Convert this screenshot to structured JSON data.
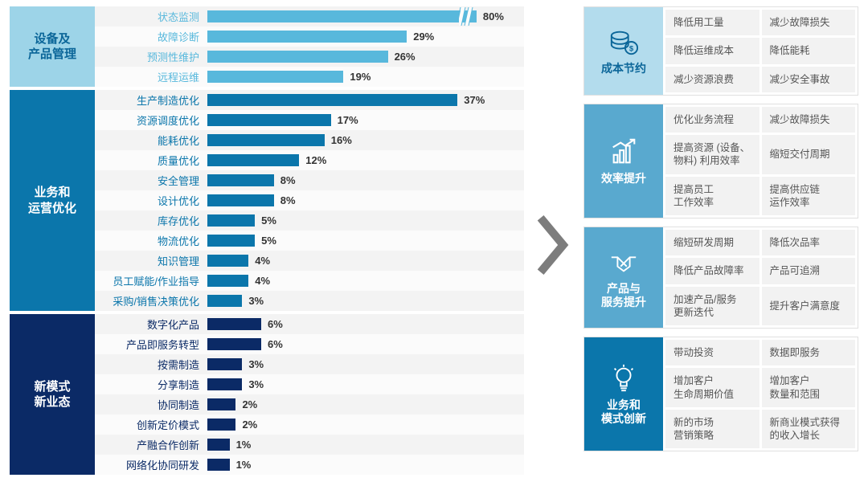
{
  "chart_max_value": 40,
  "bar_scale_percent": 80,
  "bar_offset_percent": 5,
  "groups": [
    {
      "label": "设备及\n产品管理",
      "bg": "#9dd4e8",
      "label_color": "#0b6699",
      "bar_color": "#58b8dc",
      "rows": [
        {
          "name": "状态监测",
          "value": 80,
          "display": "80%",
          "broken": true,
          "draw_value": 40
        },
        {
          "name": "故障诊断",
          "value": 29,
          "display": "29%"
        },
        {
          "name": "预测性维护",
          "value": 26,
          "display": "26%"
        },
        {
          "name": "远程运维",
          "value": 19,
          "display": "19%"
        }
      ]
    },
    {
      "label": "业务和\n运营优化",
      "bg": "#0b76ab",
      "label_color": "#ffffff",
      "bar_color": "#0b76ab",
      "rows": [
        {
          "name": "生产制造优化",
          "value": 37,
          "display": "37%"
        },
        {
          "name": "资源调度优化",
          "value": 17,
          "display": "17%"
        },
        {
          "name": "能耗优化",
          "value": 16,
          "display": "16%"
        },
        {
          "name": "质量优化",
          "value": 12,
          "display": "12%"
        },
        {
          "name": "安全管理",
          "value": 8,
          "display": "8%"
        },
        {
          "name": "设计优化",
          "value": 8,
          "display": "8%"
        },
        {
          "name": "库存优化",
          "value": 5,
          "display": "5%"
        },
        {
          "name": "物流优化",
          "value": 5,
          "display": "5%"
        },
        {
          "name": "知识管理",
          "value": 4,
          "display": "4%"
        },
        {
          "name": "员工赋能/作业指导",
          "value": 4,
          "display": "4%"
        },
        {
          "name": "采购/销售决策优化",
          "value": 3,
          "display": "3%"
        }
      ]
    },
    {
      "label": "新模式\n新业态",
      "bg": "#0b2a66",
      "label_color": "#ffffff",
      "bar_color": "#0b2a66",
      "rows": [
        {
          "name": "数字化产品",
          "value": 6,
          "display": "6%"
        },
        {
          "name": "产品即服务转型",
          "value": 6,
          "display": "6%"
        },
        {
          "name": "按需制造",
          "value": 3,
          "display": "3%"
        },
        {
          "name": "分享制造",
          "value": 3,
          "display": "3%"
        },
        {
          "name": "协同制造",
          "value": 2,
          "display": "2%"
        },
        {
          "name": "创新定价模式",
          "value": 2,
          "display": "2%"
        },
        {
          "name": "产融合作创新",
          "value": 1,
          "display": "1%"
        },
        {
          "name": "网络化协同研发",
          "value": 1,
          "display": "1%"
        }
      ]
    }
  ],
  "panels": [
    {
      "title": "成本节约",
      "color": "#b3dced",
      "text_color": "#0b6699",
      "icon": "coins",
      "cells": [
        "降低用工量",
        "减少故障损失",
        "降低运维成本",
        "降低能耗",
        "减少资源浪费",
        "减少安全事故"
      ]
    },
    {
      "title": "效率提升",
      "color": "#59a9cf",
      "text_color": "#ffffff",
      "icon": "chart",
      "cells": [
        "优化业务流程",
        "减少故障损失",
        "提高资源 (设备、物料) 利用效率",
        "缩短交付周期",
        "提高员工\n工作效率",
        "提高供应链\n运作效率"
      ]
    },
    {
      "title": "产品与\n服务提升",
      "color": "#59a9cf",
      "text_color": "#ffffff",
      "icon": "handshake",
      "cells": [
        "缩短研发周期",
        "降低次品率",
        "降低产品故障率",
        "产品可追溯",
        "加速产品/服务\n更新迭代",
        "提升客户满意度"
      ]
    },
    {
      "title": "业务和\n模式创新",
      "color": "#0b76ab",
      "text_color": "#ffffff",
      "icon": "bulb",
      "cells": [
        "带动投资",
        "数据即服务",
        "增加客户\n生命周期价值",
        "增加客户\n数量和范围",
        "新的市场\n营销策略",
        "新商业模式获得的收入增长"
      ]
    }
  ],
  "arrow_color": "#7d7d7d"
}
